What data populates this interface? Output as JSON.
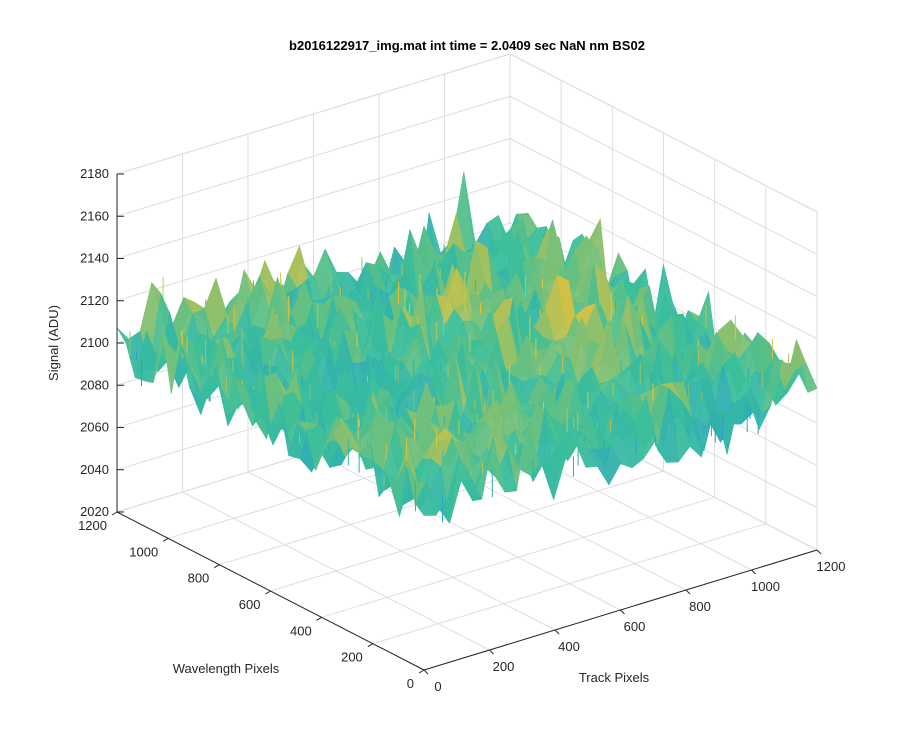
{
  "chart_data": {
    "type": "surface",
    "title": "b2016122917_img.mat int time = 2.0409 sec  NaN nm BS02",
    "xlabel": "Track Pixels",
    "ylabel": "Wavelength Pixels",
    "zlabel": "Signal (ADU)",
    "xlim": [
      0,
      1200
    ],
    "ylim": [
      0,
      1200
    ],
    "zlim": [
      2020,
      2180
    ],
    "x_ticks": [
      "0",
      "200",
      "400",
      "600",
      "800",
      "1000",
      "1200"
    ],
    "y_ticks": [
      "0",
      "200",
      "400",
      "600",
      "800",
      "1000",
      "1200"
    ],
    "z_ticks": [
      "2020",
      "2040",
      "2060",
      "2080",
      "2100",
      "2120",
      "2140",
      "2160",
      "2180"
    ],
    "grid": true,
    "colormap": "parula",
    "surface_mean": 2100,
    "surface_amplitude": 30,
    "colors": {
      "low": "#1f96d4",
      "mid": "#3cbf9a",
      "high": "#f2c233",
      "peak": "#a6d64a"
    }
  }
}
